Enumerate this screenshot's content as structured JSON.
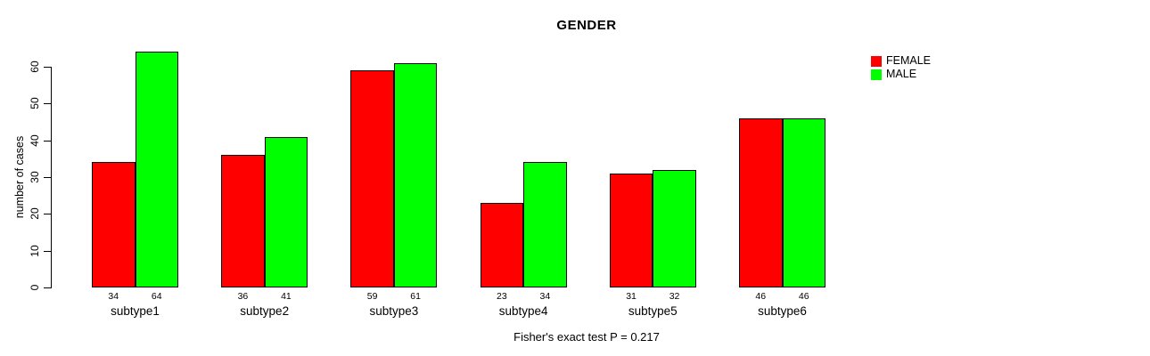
{
  "title": "GENDER",
  "footer": "Fisher's exact test P = 0.217",
  "y_axis": {
    "label": "number of cases",
    "ticks": [
      0,
      10,
      20,
      30,
      40,
      50,
      60
    ]
  },
  "legend": {
    "items": [
      {
        "label": "FEMALE",
        "color": "#ff0000"
      },
      {
        "label": "MALE",
        "color": "#00ff00"
      }
    ]
  },
  "chart_data": {
    "type": "bar",
    "title": "GENDER",
    "categories": [
      "subtype1",
      "subtype2",
      "subtype3",
      "subtype4",
      "subtype5",
      "subtype6"
    ],
    "series": [
      {
        "name": "FEMALE",
        "color": "#ff0000",
        "values": [
          34,
          36,
          59,
          23,
          31,
          46
        ]
      },
      {
        "name": "MALE",
        "color": "#00ff00",
        "values": [
          64,
          41,
          61,
          34,
          32,
          46
        ]
      }
    ],
    "xlabel": "",
    "ylabel": "number of cases",
    "ylim": [
      0,
      60
    ],
    "yticks": [
      0,
      10,
      20,
      30,
      40,
      50,
      60
    ],
    "grid": false,
    "legend_position": "top-right",
    "bar_value_labels": true,
    "annotation": "Fisher's exact test P = 0.217"
  }
}
